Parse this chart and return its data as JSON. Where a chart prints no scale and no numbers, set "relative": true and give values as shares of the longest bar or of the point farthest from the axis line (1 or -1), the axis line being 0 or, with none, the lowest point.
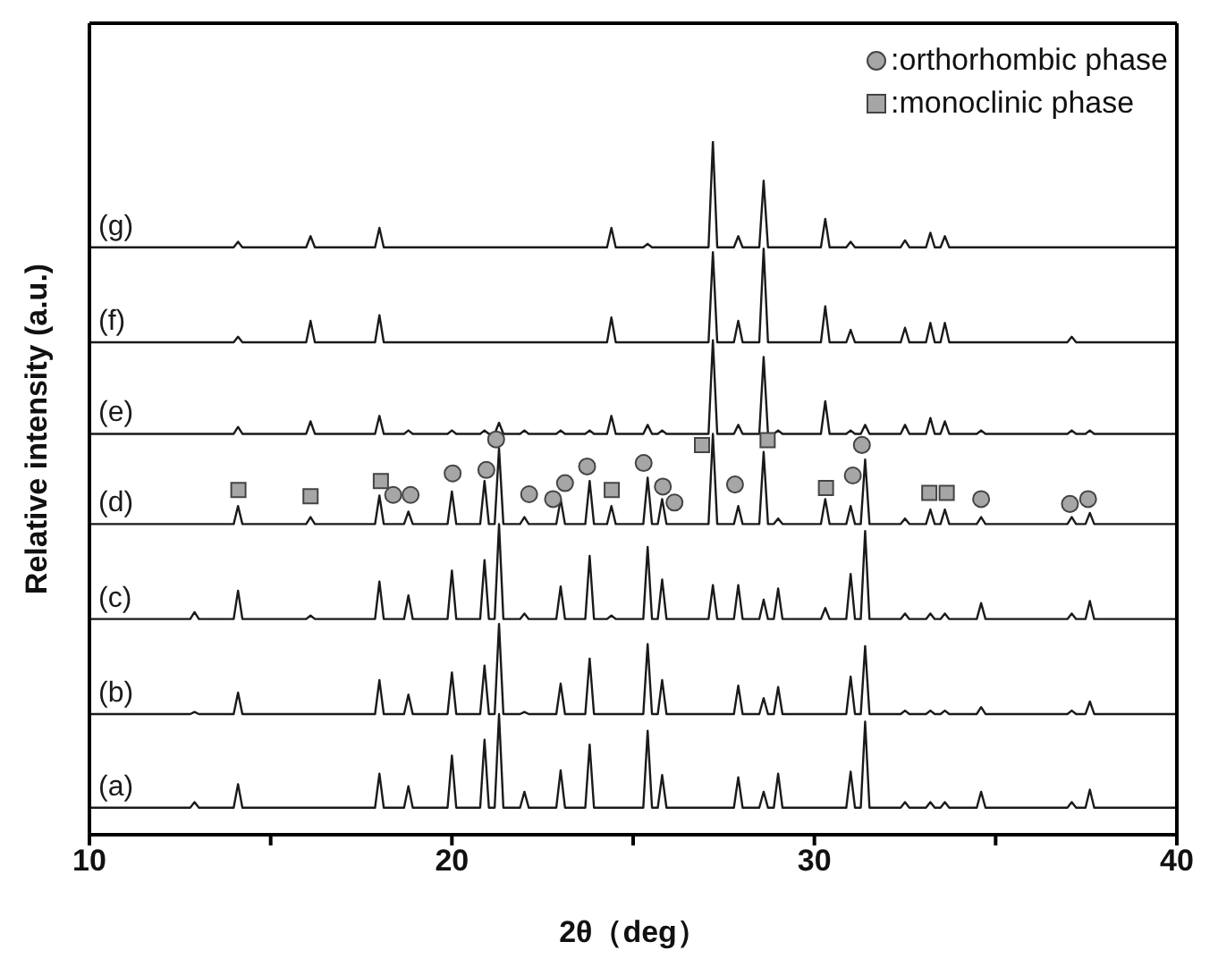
{
  "chart_data": {
    "type": "line",
    "relative": true,
    "xlabel": "2θ（deg）",
    "ylabel": "Relative intensity (a.u.)",
    "xlim": [
      10,
      40
    ],
    "xticks": [
      10,
      {
        "value": 15,
        "label": null
      },
      20,
      {
        "value": 25,
        "label": null
      },
      30,
      {
        "value": 35,
        "label": null
      },
      40
    ],
    "legend": "top right",
    "x": [
      10,
      12.78,
      12.9,
      13.02,
      13.98,
      14.1,
      14.22,
      15.98,
      16.1,
      16.22,
      17.88,
      18,
      18.12,
      18.68,
      18.8,
      18.92,
      19.88,
      20,
      20.12,
      20.78,
      20.9,
      21.02,
      21.18,
      21.3,
      21.42,
      21.88,
      22,
      22.12,
      22.88,
      23,
      23.12,
      23.68,
      23.8,
      23.92,
      24.28,
      24.4,
      24.52,
      25.28,
      25.4,
      25.52,
      25.68,
      25.8,
      25.92,
      27.08,
      27.2,
      27.32,
      27.78,
      27.9,
      28.02,
      28.48,
      28.6,
      28.72,
      28.88,
      29,
      29.12,
      30.18,
      30.3,
      30.42,
      30.88,
      31,
      31.12,
      31.28,
      31.4,
      31.52,
      32.38,
      32.5,
      32.62,
      33.08,
      33.2,
      33.32,
      33.48,
      33.6,
      33.72,
      34.48,
      34.6,
      34.72,
      36.98,
      37.1,
      37.22,
      37.48,
      37.6,
      37.72,
      40
    ],
    "series": [
      {
        "name": "(a)",
        "color": "#1a1a1a",
        "values": [
          0.039,
          0.039,
          0.047,
          0.039,
          0.039,
          0.073,
          0.039,
          0.039,
          0.039,
          0.039,
          0.039,
          0.088,
          0.039,
          0.039,
          0.07,
          0.039,
          0.039,
          0.114,
          0.039,
          0.039,
          0.137,
          0.039,
          0.039,
          0.174,
          0.039,
          0.039,
          0.062,
          0.039,
          0.039,
          0.093,
          0.039,
          0.039,
          0.13,
          0.039,
          0.039,
          0.039,
          0.039,
          0.039,
          0.15,
          0.039,
          0.039,
          0.086,
          0.039,
          0.039,
          0.039,
          0.039,
          0.039,
          0.083,
          0.039,
          0.039,
          0.062,
          0.039,
          0.039,
          0.088,
          0.039,
          0.039,
          0.039,
          0.039,
          0.039,
          0.091,
          0.039,
          0.039,
          0.163,
          0.039,
          0.039,
          0.047,
          0.039,
          0.039,
          0.047,
          0.039,
          0.039,
          0.047,
          0.039,
          0.039,
          0.062,
          0.039,
          0.039,
          0.047,
          0.039,
          0.039,
          0.065,
          0.039,
          0.039
        ]
      },
      {
        "name": "(b)",
        "color": "#1a1a1a",
        "values": [
          0.174,
          0.174,
          0.177,
          0.174,
          0.174,
          0.205,
          0.174,
          0.174,
          0.174,
          0.174,
          0.174,
          0.223,
          0.174,
          0.174,
          0.202,
          0.174,
          0.174,
          0.234,
          0.174,
          0.174,
          0.244,
          0.174,
          0.174,
          0.304,
          0.174,
          0.174,
          0.177,
          0.174,
          0.174,
          0.218,
          0.174,
          0.174,
          0.254,
          0.174,
          0.174,
          0.174,
          0.174,
          0.174,
          0.275,
          0.174,
          0.174,
          0.223,
          0.174,
          0.174,
          0.174,
          0.174,
          0.174,
          0.215,
          0.174,
          0.174,
          0.197,
          0.174,
          0.174,
          0.213,
          0.174,
          0.174,
          0.174,
          0.174,
          0.174,
          0.228,
          0.174,
          0.174,
          0.272,
          0.174,
          0.174,
          0.179,
          0.174,
          0.174,
          0.179,
          0.174,
          0.174,
          0.179,
          0.174,
          0.174,
          0.184,
          0.174,
          0.174,
          0.179,
          0.174,
          0.174,
          0.192,
          0.174,
          0.174
        ]
      },
      {
        "name": "(c)",
        "color": "#1a1a1a",
        "values": [
          0.311,
          0.311,
          0.321,
          0.311,
          0.311,
          0.352,
          0.311,
          0.311,
          0.316,
          0.311,
          0.311,
          0.365,
          0.311,
          0.311,
          0.345,
          0.311,
          0.311,
          0.381,
          0.311,
          0.311,
          0.396,
          0.311,
          0.311,
          0.448,
          0.311,
          0.311,
          0.319,
          0.311,
          0.311,
          0.358,
          0.311,
          0.311,
          0.402,
          0.311,
          0.311,
          0.316,
          0.311,
          0.311,
          0.415,
          0.311,
          0.311,
          0.368,
          0.311,
          0.311,
          0.36,
          0.311,
          0.311,
          0.36,
          0.311,
          0.311,
          0.339,
          0.311,
          0.311,
          0.355,
          0.311,
          0.311,
          0.327,
          0.311,
          0.311,
          0.376,
          0.311,
          0.311,
          0.438,
          0.311,
          0.311,
          0.319,
          0.311,
          0.311,
          0.319,
          0.311,
          0.311,
          0.319,
          0.311,
          0.311,
          0.334,
          0.311,
          0.311,
          0.319,
          0.311,
          0.311,
          0.337,
          0.311,
          0.311
        ]
      },
      {
        "name": "(d)",
        "color": "#1a1a1a",
        "values": [
          0.448,
          0.448,
          0.448,
          0.448,
          0.448,
          0.474,
          0.448,
          0.448,
          0.458,
          0.448,
          0.448,
          0.489,
          0.448,
          0.448,
          0.466,
          0.448,
          0.448,
          0.495,
          0.448,
          0.448,
          0.51,
          0.448,
          0.448,
          0.557,
          0.448,
          0.448,
          0.458,
          0.448,
          0.448,
          0.484,
          0.448,
          0.448,
          0.51,
          0.448,
          0.448,
          0.474,
          0.448,
          0.448,
          0.515,
          0.448,
          0.448,
          0.484,
          0.448,
          0.448,
          0.578,
          0.448,
          0.448,
          0.474,
          0.448,
          0.448,
          0.552,
          0.448,
          0.448,
          0.456,
          0.448,
          0.448,
          0.484,
          0.448,
          0.448,
          0.474,
          0.448,
          0.448,
          0.541,
          0.448,
          0.448,
          0.456,
          0.448,
          0.448,
          0.469,
          0.448,
          0.448,
          0.469,
          0.448,
          0.448,
          0.458,
          0.448,
          0.448,
          0.458,
          0.448,
          0.448,
          0.464,
          0.448,
          0.448
        ]
      },
      {
        "name": "(e)",
        "color": "#1a1a1a",
        "values": [
          0.578,
          0.578,
          0.578,
          0.578,
          0.578,
          0.588,
          0.578,
          0.578,
          0.596,
          0.578,
          0.578,
          0.604,
          0.578,
          0.578,
          0.583,
          0.578,
          0.578,
          0.583,
          0.578,
          0.578,
          0.583,
          0.578,
          0.578,
          0.594,
          0.578,
          0.578,
          0.583,
          0.578,
          0.578,
          0.583,
          0.578,
          0.578,
          0.583,
          0.578,
          0.578,
          0.604,
          0.578,
          0.578,
          0.591,
          0.578,
          0.578,
          0.583,
          0.578,
          0.578,
          0.713,
          0.578,
          0.578,
          0.591,
          0.578,
          0.578,
          0.689,
          0.578,
          0.578,
          0.583,
          0.578,
          0.578,
          0.625,
          0.578,
          0.578,
          0.583,
          0.578,
          0.578,
          0.591,
          0.578,
          0.578,
          0.591,
          0.578,
          0.578,
          0.601,
          0.578,
          0.578,
          0.596,
          0.578,
          0.578,
          0.583,
          0.578,
          0.578,
          0.583,
          0.578,
          0.578,
          0.583,
          0.578,
          0.578
        ]
      },
      {
        "name": "(f)",
        "color": "#1a1a1a",
        "values": [
          0.71,
          0.71,
          0.71,
          0.71,
          0.71,
          0.718,
          0.71,
          0.71,
          0.741,
          0.71,
          0.71,
          0.749,
          0.71,
          0.71,
          0.71,
          0.71,
          0.71,
          0.71,
          0.71,
          0.71,
          0.71,
          0.71,
          0.71,
          0.71,
          0.71,
          0.71,
          0.71,
          0.71,
          0.71,
          0.71,
          0.71,
          0.71,
          0.71,
          0.71,
          0.71,
          0.746,
          0.71,
          0.71,
          0.71,
          0.71,
          0.71,
          0.71,
          0.71,
          0.71,
          0.84,
          0.71,
          0.71,
          0.741,
          0.71,
          0.71,
          0.845,
          0.71,
          0.71,
          0.71,
          0.71,
          0.71,
          0.762,
          0.71,
          0.71,
          0.728,
          0.71,
          0.71,
          0.71,
          0.71,
          0.71,
          0.731,
          0.71,
          0.71,
          0.738,
          0.71,
          0.71,
          0.738,
          0.71,
          0.71,
          0.71,
          0.71,
          0.71,
          0.718,
          0.71,
          0.71,
          0.71,
          0.71,
          0.71
        ]
      },
      {
        "name": "(g)",
        "color": "#1a1a1a",
        "values": [
          0.847,
          0.847,
          0.847,
          0.847,
          0.847,
          0.855,
          0.847,
          0.847,
          0.863,
          0.847,
          0.847,
          0.875,
          0.847,
          0.847,
          0.847,
          0.847,
          0.847,
          0.847,
          0.847,
          0.847,
          0.847,
          0.847,
          0.847,
          0.847,
          0.847,
          0.847,
          0.847,
          0.847,
          0.847,
          0.847,
          0.847,
          0.847,
          0.847,
          0.847,
          0.847,
          0.875,
          0.847,
          0.847,
          0.852,
          0.847,
          0.847,
          0.847,
          0.847,
          0.847,
          1,
          0.847,
          0.847,
          0.863,
          0.847,
          0.847,
          0.943,
          0.847,
          0.847,
          0.847,
          0.847,
          0.847,
          0.888,
          0.847,
          0.847,
          0.855,
          0.847,
          0.847,
          0.847,
          0.847,
          0.847,
          0.857,
          0.847,
          0.847,
          0.868,
          0.847,
          0.847,
          0.863,
          0.847,
          0.847,
          0.847,
          0.847,
          0.847,
          0.847,
          0.847,
          0.847,
          0.847,
          0.847,
          0.847
        ]
      },
      {
        "name": ":orthorhombic phase",
        "type": "scatter",
        "marker": "circle",
        "color": "#a6a6a6",
        "x": [
          18.38,
          18.86,
          20.02,
          20.95,
          21.22,
          22.13,
          22.79,
          23.12,
          23.73,
          25.29,
          25.82,
          26.14,
          27.81,
          31.06,
          31.31,
          34.6,
          37.05,
          37.55
        ],
        "values": [
          0.49,
          0.49,
          0.521,
          0.526,
          0.57,
          0.491,
          0.484,
          0.507,
          0.531,
          0.536,
          0.502,
          0.479,
          0.505,
          0.518,
          0.562,
          0.484,
          0.477,
          0.484
        ]
      },
      {
        "name": ":monoclinic phase",
        "type": "scatter",
        "marker": "square",
        "color": "#a6a6a6",
        "x": [
          14.11,
          16.1,
          18.04,
          24.41,
          26.9,
          28.71,
          30.32,
          33.17,
          33.65
        ],
        "values": [
          0.497,
          0.488,
          0.51,
          0.497,
          0.562,
          0.569,
          0.5,
          0.493,
          0.493
        ]
      }
    ]
  }
}
